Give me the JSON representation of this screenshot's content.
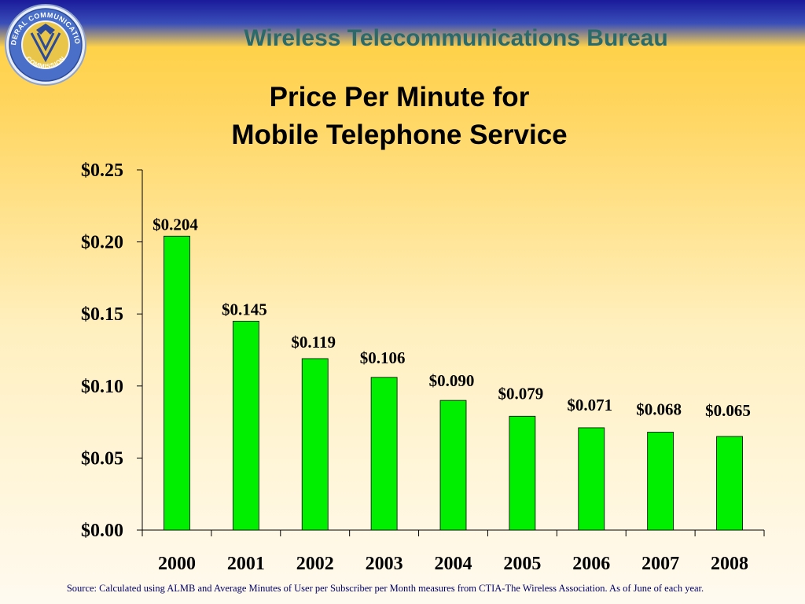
{
  "header": {
    "bureau": "Wireless Telecommunications Bureau",
    "seal_text_top": "FEDERAL COMMUNICATIONS",
    "seal_text_bottom": "COMMISSION"
  },
  "colors": {
    "bar": "#00ee00",
    "bar_stroke": "#000000",
    "bureau_text": "#2a6a6a"
  },
  "chart_data": {
    "type": "bar",
    "title_lines": [
      "Price Per Minute for",
      "Mobile Telephone Service"
    ],
    "categories": [
      "2000",
      "2001",
      "2002",
      "2003",
      "2004",
      "2005",
      "2006",
      "2007",
      "2008"
    ],
    "values": [
      0.204,
      0.145,
      0.119,
      0.106,
      0.09,
      0.079,
      0.071,
      0.068,
      0.065
    ],
    "data_labels": [
      "$0.204",
      "$0.145",
      "$0.119",
      "$0.106",
      "$0.090",
      "$0.079",
      "$0.071",
      "$0.068",
      "$0.065"
    ],
    "yticks": [
      0,
      0.05,
      0.1,
      0.15,
      0.2,
      0.25
    ],
    "ytick_labels": [
      "$0.00",
      "$0.05",
      "$0.10",
      "$0.15",
      "$0.20",
      "$0.25"
    ],
    "ylim": [
      0,
      0.25
    ],
    "grid": false,
    "legend": "none"
  },
  "footer": {
    "source": "Source: Calculated using ALMB and Average Minutes of User per Subscriber per Month measures from CTIA-The Wireless Association.  As of June of each year."
  }
}
